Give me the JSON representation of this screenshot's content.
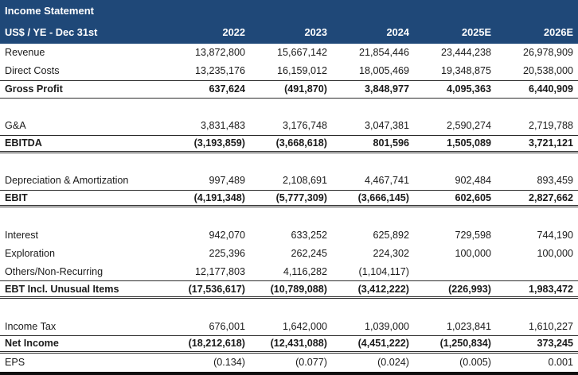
{
  "title": "Income Statement",
  "subtitle_label": "US$ / YE - Dec 31st",
  "columns": [
    "2022",
    "2023",
    "2024",
    "2025E",
    "2026E"
  ],
  "colors": {
    "header_bg": "#1F4878",
    "header_text": "#FFFFFF",
    "body_text": "#1A1A1A",
    "rule_line": "#2B2B2B",
    "bottom_bar": "#101010"
  },
  "rows": {
    "revenue": {
      "label": "Revenue",
      "values": [
        "13,872,800",
        "15,667,142",
        "21,854,446",
        "23,444,238",
        "26,978,909"
      ]
    },
    "direct_costs": {
      "label": "Direct Costs",
      "values": [
        "13,235,176",
        "16,159,012",
        "18,005,469",
        "19,348,875",
        "20,538,000"
      ]
    },
    "gross_profit": {
      "label": "Gross Profit",
      "values": [
        "637,624",
        "(491,870)",
        "3,848,977",
        "4,095,363",
        "6,440,909"
      ]
    },
    "ga": {
      "label": "G&A",
      "values": [
        "3,831,483",
        "3,176,748",
        "3,047,381",
        "2,590,274",
        "2,719,788"
      ]
    },
    "ebitda": {
      "label": "EBITDA",
      "values": [
        "(3,193,859)",
        "(3,668,618)",
        "801,596",
        "1,505,089",
        "3,721,121"
      ]
    },
    "depreciation": {
      "label": "Depreciation & Amortization",
      "values": [
        "997,489",
        "2,108,691",
        "4,467,741",
        "902,484",
        "893,459"
      ]
    },
    "ebit": {
      "label": "EBIT",
      "values": [
        "(4,191,348)",
        "(5,777,309)",
        "(3,666,145)",
        "602,605",
        "2,827,662"
      ]
    },
    "interest": {
      "label": "Interest",
      "values": [
        "942,070",
        "633,252",
        "625,892",
        "729,598",
        "744,190"
      ]
    },
    "exploration": {
      "label": "Exploration",
      "values": [
        "225,396",
        "262,245",
        "224,302",
        "100,000",
        "100,000"
      ]
    },
    "others": {
      "label": "Others/Non-Recurring",
      "values": [
        "12,177,803",
        "4,116,282",
        "(1,104,117)",
        "",
        ""
      ]
    },
    "ebt": {
      "label": "EBT Incl. Unusual Items",
      "values": [
        "(17,536,617)",
        "(10,789,088)",
        "(3,412,222)",
        "(226,993)",
        "1,983,472"
      ]
    },
    "income_tax": {
      "label": "Income Tax",
      "values": [
        "676,001",
        "1,642,000",
        "1,039,000",
        "1,023,841",
        "1,610,227"
      ]
    },
    "net_income": {
      "label": "Net Income",
      "values": [
        "(18,212,618)",
        "(12,431,088)",
        "(4,451,222)",
        "(1,250,834)",
        "373,245"
      ]
    },
    "eps": {
      "label": "EPS",
      "values": [
        "(0.134)",
        "(0.077)",
        "(0.024)",
        "(0.005)",
        "0.001"
      ]
    }
  }
}
